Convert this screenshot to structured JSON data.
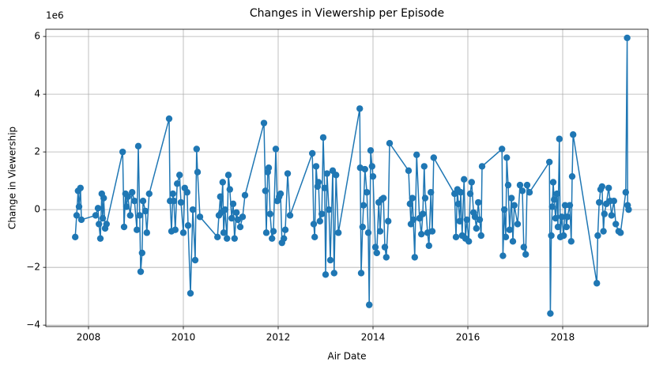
{
  "chart_data": {
    "type": "line",
    "title": "Changes in Viewership per Episode",
    "x_label": "Air Date",
    "y_label": "Change in Viewership",
    "y_offset_label": "1e6",
    "color": "#1f77b4",
    "grid": true,
    "xlim": [
      2007.1,
      2019.8
    ],
    "ylim": [
      -4.05,
      6.25
    ],
    "xticks": [
      2008,
      2010,
      2012,
      2014,
      2016,
      2018
    ],
    "yticks": [
      {
        "value": -4,
        "label": "−4"
      },
      {
        "value": -2,
        "label": "−2"
      },
      0,
      2,
      4,
      6
    ],
    "x": [
      2007.72,
      2007.75,
      2007.78,
      2007.8,
      2007.83,
      2007.85,
      2008.15,
      2008.2,
      2008.22,
      2008.25,
      2008.28,
      2008.3,
      2008.32,
      2008.35,
      2008.38,
      2008.72,
      2008.75,
      2008.78,
      2008.8,
      2008.83,
      2008.88,
      2008.92,
      2008.97,
      2009.02,
      2009.05,
      2009.08,
      2009.1,
      2009.13,
      2009.15,
      2009.2,
      2009.23,
      2009.28,
      2009.7,
      2009.72,
      2009.75,
      2009.78,
      2009.8,
      2009.83,
      2009.87,
      2009.92,
      2009.95,
      2010.0,
      2010.03,
      2010.08,
      2010.1,
      2010.15,
      2010.2,
      2010.25,
      2010.28,
      2010.3,
      2010.35,
      2010.72,
      2010.75,
      2010.78,
      2010.8,
      2010.83,
      2010.85,
      2010.88,
      2010.92,
      2010.95,
      2010.98,
      2011.02,
      2011.05,
      2011.08,
      2011.12,
      2011.15,
      2011.2,
      2011.25,
      2011.3,
      2011.7,
      2011.73,
      2011.75,
      2011.78,
      2011.8,
      2011.83,
      2011.87,
      2011.9,
      2011.95,
      2011.98,
      2012.02,
      2012.05,
      2012.08,
      2012.12,
      2012.15,
      2012.2,
      2012.25,
      2012.72,
      2012.75,
      2012.77,
      2012.8,
      2012.83,
      2012.85,
      2012.88,
      2012.92,
      2012.95,
      2012.98,
      2013.0,
      2013.03,
      2013.07,
      2013.1,
      2013.15,
      2013.18,
      2013.22,
      2013.27,
      2013.72,
      2013.73,
      2013.75,
      2013.78,
      2013.8,
      2013.83,
      2013.87,
      2013.9,
      2013.92,
      2013.95,
      2013.98,
      2014.0,
      2014.05,
      2014.08,
      2014.12,
      2014.15,
      2014.18,
      2014.22,
      2014.25,
      2014.28,
      2014.32,
      2014.35,
      2014.75,
      2014.78,
      2014.8,
      2014.83,
      2014.85,
      2014.88,
      2014.92,
      2014.98,
      2015.02,
      2015.05,
      2015.08,
      2015.1,
      2015.15,
      2015.18,
      2015.22,
      2015.25,
      2015.28,
      2015.72,
      2015.75,
      2015.78,
      2015.8,
      2015.83,
      2015.85,
      2015.88,
      2015.92,
      2015.95,
      2015.98,
      2016.02,
      2016.05,
      2016.08,
      2016.12,
      2016.15,
      2016.18,
      2016.22,
      2016.25,
      2016.28,
      2016.3,
      2016.72,
      2016.74,
      2016.77,
      2016.8,
      2016.82,
      2016.85,
      2016.88,
      2016.92,
      2016.95,
      2016.98,
      2017.05,
      2017.1,
      2017.15,
      2017.18,
      2017.22,
      2017.25,
      2017.3,
      2017.72,
      2017.74,
      2017.76,
      2017.78,
      2017.8,
      2017.82,
      2017.85,
      2017.88,
      2017.9,
      2017.93,
      2017.95,
      2017.98,
      2018.02,
      2018.05,
      2018.08,
      2018.1,
      2018.15,
      2018.18,
      2018.2,
      2018.22,
      2018.72,
      2018.74,
      2018.77,
      2018.8,
      2018.83,
      2018.86,
      2018.88,
      2018.92,
      2018.97,
      2019.0,
      2019.03,
      2019.08,
      2019.12,
      2019.18,
      2019.22,
      2019.33,
      2019.36,
      2019.37,
      2019.39
    ],
    "series": [
      {
        "name": "Change in Viewership",
        "color": "#1f77b4",
        "values": [
          -0.95,
          -0.2,
          0.65,
          0.1,
          0.75,
          -0.35,
          -0.2,
          0.05,
          -0.5,
          -1.0,
          0.55,
          -0.3,
          0.4,
          -0.65,
          -0.5,
          2.0,
          -0.6,
          0.55,
          0.1,
          0.45,
          -0.2,
          0.6,
          0.3,
          -0.7,
          2.2,
          -0.2,
          -2.15,
          -1.5,
          0.3,
          -0.05,
          -0.8,
          0.55,
          3.15,
          0.3,
          -0.75,
          0.55,
          0.3,
          -0.7,
          0.9,
          1.2,
          0.25,
          -0.8,
          0.75,
          0.6,
          -0.55,
          -2.9,
          0.0,
          -1.75,
          2.1,
          1.3,
          -0.25,
          -0.95,
          -0.2,
          0.45,
          -0.1,
          0.95,
          -0.8,
          0.0,
          -1.0,
          1.2,
          0.7,
          -0.3,
          0.2,
          -1.0,
          -0.1,
          -0.35,
          -0.6,
          -0.25,
          0.5,
          3.0,
          0.65,
          -0.8,
          1.3,
          1.45,
          -0.15,
          -1.0,
          -0.75,
          2.1,
          0.3,
          0.45,
          0.55,
          -1.15,
          -1.0,
          -0.7,
          1.25,
          -0.2,
          1.95,
          -0.5,
          -0.95,
          1.5,
          0.8,
          0.95,
          -0.4,
          -0.15,
          2.5,
          0.75,
          -2.25,
          1.25,
          0.0,
          -1.75,
          1.35,
          -2.2,
          1.2,
          -0.8,
          3.5,
          1.45,
          -2.2,
          -0.6,
          0.15,
          1.4,
          0.6,
          -0.8,
          -3.3,
          2.05,
          1.5,
          1.15,
          -1.3,
          -1.5,
          0.25,
          -0.75,
          0.35,
          0.4,
          -1.3,
          -1.65,
          -0.4,
          2.3,
          1.35,
          0.2,
          -0.5,
          0.4,
          -0.35,
          -1.65,
          1.9,
          -0.3,
          -0.85,
          -0.15,
          1.5,
          0.4,
          -0.8,
          -1.25,
          0.6,
          -0.75,
          1.8,
          0.55,
          -0.95,
          0.7,
          0.2,
          -0.4,
          0.6,
          -0.9,
          1.05,
          -1.0,
          -0.35,
          -1.1,
          0.55,
          0.95,
          -0.1,
          -0.25,
          -0.65,
          0.25,
          -0.35,
          -0.9,
          1.5,
          2.1,
          -1.6,
          0.0,
          -0.95,
          1.8,
          0.85,
          -0.7,
          0.4,
          -1.1,
          0.15,
          -0.5,
          0.85,
          0.65,
          -1.3,
          -1.55,
          0.85,
          0.6,
          1.65,
          -3.6,
          -0.9,
          0.1,
          0.95,
          0.35,
          -0.3,
          0.55,
          -0.6,
          2.45,
          -0.95,
          -0.25,
          -0.9,
          0.15,
          -0.6,
          -0.25,
          0.15,
          -1.1,
          1.15,
          2.6,
          -2.55,
          -0.9,
          0.25,
          0.7,
          0.8,
          -0.75,
          -0.15,
          0.2,
          0.75,
          0.3,
          -0.2,
          0.3,
          -0.5,
          -0.75,
          -0.8,
          0.6,
          5.95,
          0.15,
          0.0
        ]
      }
    ]
  }
}
